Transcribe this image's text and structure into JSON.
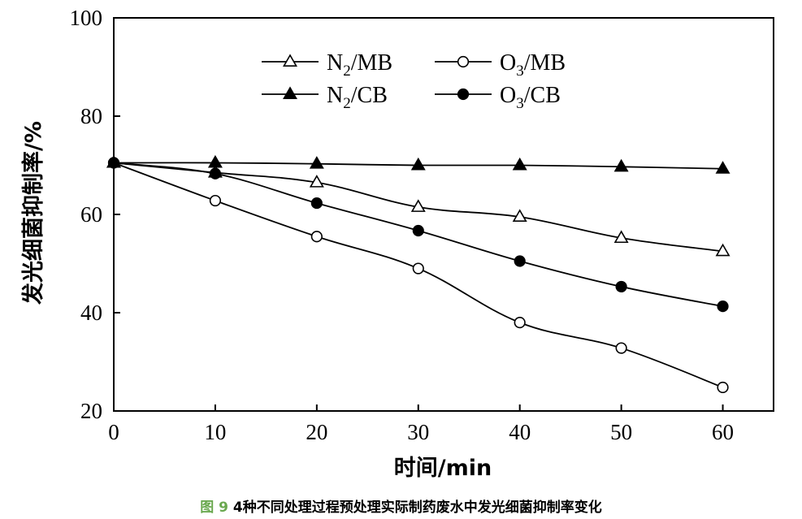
{
  "chart_data": {
    "type": "line",
    "title": "",
    "xlabel": "时间/min",
    "ylabel": "发光细菌抑制率/%",
    "xlim": [
      0,
      65
    ],
    "ylim": [
      20,
      100
    ],
    "x_ticks": [
      0,
      10,
      20,
      30,
      40,
      50,
      60
    ],
    "y_ticks": [
      20,
      40,
      60,
      80,
      100
    ],
    "grid": false,
    "legend_position": "top-center",
    "x": [
      0,
      10,
      20,
      30,
      40,
      50,
      60
    ],
    "series": [
      {
        "name": "N2/MB",
        "label_main": "N",
        "label_sub": "2",
        "label_rest": "/MB",
        "marker": "triangle-open",
        "values": [
          70.5,
          68.5,
          66.5,
          61.5,
          59.5,
          55.2,
          52.5
        ]
      },
      {
        "name": "O3/MB",
        "label_main": "O",
        "label_sub": "3",
        "label_rest": "/MB",
        "marker": "circle-open",
        "values": [
          70.5,
          62.8,
          55.5,
          49.0,
          38.0,
          32.8,
          24.8
        ]
      },
      {
        "name": "N2/CB",
        "label_main": "N",
        "label_sub": "2",
        "label_rest": "/CB",
        "marker": "triangle-filled",
        "values": [
          70.5,
          70.5,
          70.3,
          70.0,
          70.0,
          69.7,
          69.3
        ]
      },
      {
        "name": "O3/CB",
        "label_main": "O",
        "label_sub": "3",
        "label_rest": "/CB",
        "marker": "circle-filled",
        "values": [
          70.5,
          68.3,
          62.3,
          56.7,
          50.5,
          45.3,
          41.3
        ]
      }
    ]
  },
  "caption": {
    "figure_label": "图 9",
    "text": "4种不同处理过程预处理实际制药废水中发光细菌抑制率变化"
  }
}
